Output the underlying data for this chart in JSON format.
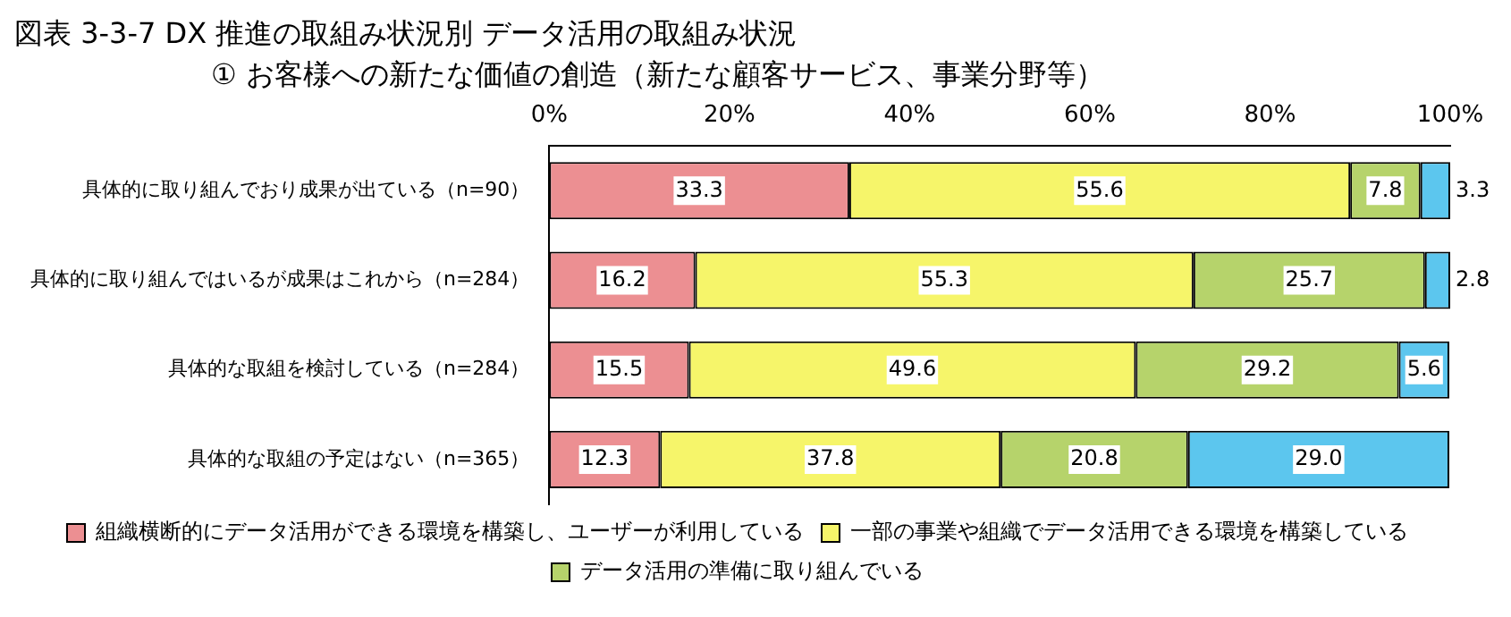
{
  "chart_data": {
    "type": "bar",
    "orientation": "horizontal",
    "stacked": true,
    "title": "図表 3-3-7  DX 推進の取組み状況別  データ活用の取組み状況",
    "subtitle": "①  お客様への新たな価値の創造（新たな顧客サービス、事業分野等）",
    "categories": [
      "具体的に取り組んでおり成果が出ている（n=90）",
      "具体的に取り組んではいるが成果はこれから（n=284）",
      "具体的な取組を検討している（n=284）",
      "具体的な取組の予定はない（n=365）"
    ],
    "series": [
      {
        "name": "組織横断的にデータ活用ができる環境を構築し、ユーザーが利用している",
        "color": "#ec8f92",
        "values": [
          33.3,
          16.2,
          15.5,
          12.3
        ],
        "value_labels": [
          "33.3",
          "16.2",
          "15.5",
          "12.3"
        ]
      },
      {
        "name": "一部の事業や組織でデータ活用できる環境を構築している",
        "color": "#f6f56a",
        "values": [
          55.6,
          55.3,
          49.6,
          37.8
        ],
        "value_labels": [
          "55.6",
          "55.3",
          "49.6",
          "37.8"
        ]
      },
      {
        "name": "データ活用の準備に取り組んでいる",
        "color": "#b6d36b",
        "values": [
          7.8,
          25.7,
          29.2,
          20.8
        ],
        "value_labels": [
          "7.8",
          "25.7",
          "29.2",
          "20.8"
        ]
      },
      {
        "color": "#5cc6ee",
        "values": [
          3.3,
          2.8,
          5.6,
          29.0
        ],
        "value_labels": [
          "3.3",
          "2.8",
          "5.6",
          "29.0"
        ]
      }
    ],
    "xlim": [
      0,
      100
    ],
    "xticks": [
      {
        "value": 0,
        "label": "0%"
      },
      {
        "value": 20,
        "label": "20%"
      },
      {
        "value": 40,
        "label": "40%"
      },
      {
        "value": 60,
        "label": "60%"
      },
      {
        "value": 80,
        "label": "80%"
      },
      {
        "value": 100,
        "label": "100%"
      }
    ],
    "legend": "bottom",
    "grid": false
  }
}
